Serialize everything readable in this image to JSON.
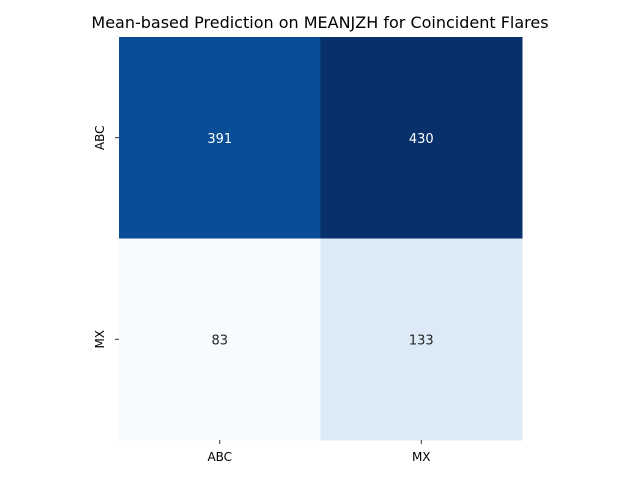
{
  "chart_data": {
    "type": "heatmap",
    "title": "Mean-based Prediction on MEANJZH for Coincident Flares",
    "xlabel": "",
    "ylabel": "",
    "x_categories": [
      "ABC",
      "MX"
    ],
    "y_categories": [
      "ABC",
      "MX"
    ],
    "values": [
      [
        391,
        430
      ],
      [
        83,
        133
      ]
    ],
    "colormap": "Blues",
    "vmin": 83,
    "vmax": 430,
    "colorbar": false,
    "annotations": true,
    "cell_colors": [
      [
        "#084d96",
        "#08306b"
      ],
      [
        "#f7fbff",
        "#dce9f6"
      ]
    ],
    "annotation_colors": [
      [
        "#ffffff",
        "#ffffff"
      ],
      [
        "#262626",
        "#262626"
      ]
    ]
  }
}
